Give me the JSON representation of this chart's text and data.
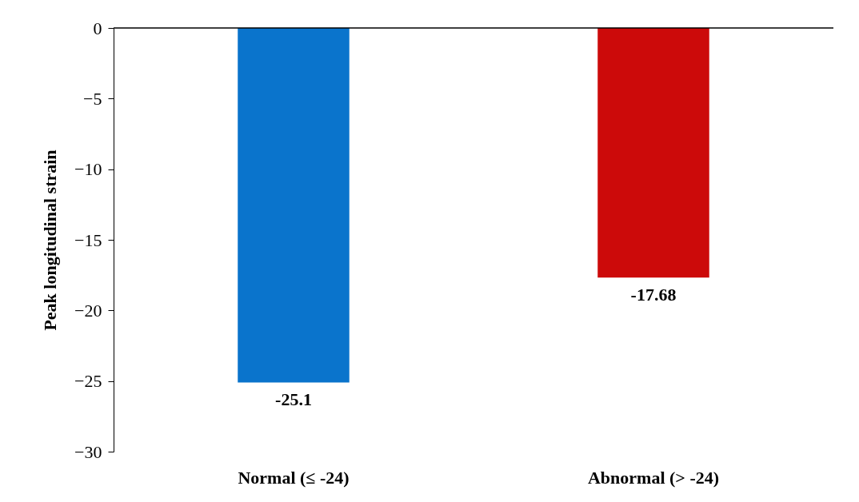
{
  "chart_data": {
    "type": "bar",
    "categories": [
      "Normal (≤ -24)",
      "Abnormal (> -24)"
    ],
    "values": [
      -25.1,
      -17.68
    ],
    "colors": [
      "#0a74cc",
      "#cc0a0a"
    ],
    "ylabel": "Peak longitudinal strain",
    "ylim": [
      -30,
      0
    ],
    "yticks": [
      -30,
      -25,
      -20,
      -15,
      -10,
      -5,
      0
    ],
    "grid": false,
    "data_labels": true
  }
}
